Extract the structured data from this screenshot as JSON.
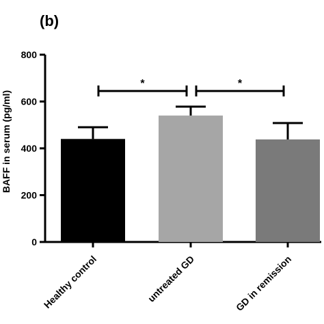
{
  "panel_label": "(b)",
  "chart_data": {
    "type": "bar",
    "ylabel": "BAFF in serum (pg/ml)",
    "xlabel": "",
    "ylim": [
      0,
      800
    ],
    "yticks": [
      0,
      200,
      400,
      600,
      800
    ],
    "categories": [
      "Healthy control",
      "untreated GD",
      "GD in remission"
    ],
    "values": [
      440,
      540,
      438
    ],
    "errors": [
      50,
      38,
      70
    ],
    "colors": [
      "#000000",
      "#a6a6a6",
      "#7a7a7a"
    ],
    "significance": [
      {
        "from": 0,
        "to": 1,
        "y": 645,
        "label": "*"
      },
      {
        "from": 1,
        "to": 2,
        "y": 645,
        "label": "*"
      }
    ]
  }
}
